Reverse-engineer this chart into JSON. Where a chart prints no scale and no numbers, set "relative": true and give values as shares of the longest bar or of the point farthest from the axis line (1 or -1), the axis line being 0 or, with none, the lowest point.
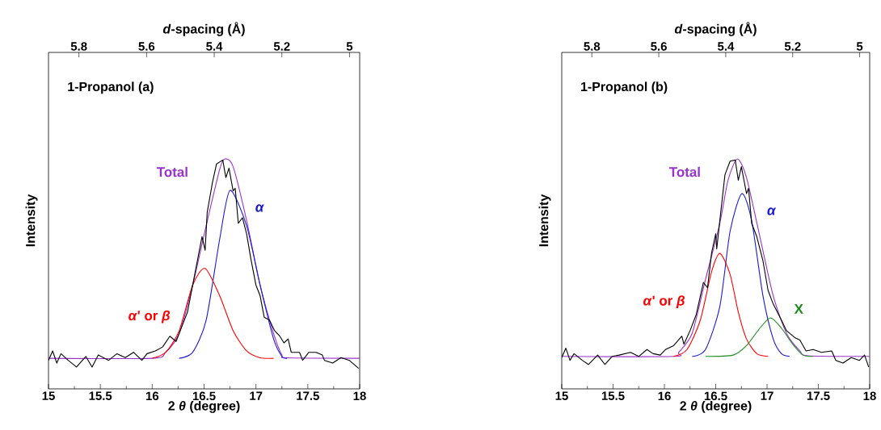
{
  "chart_data": [
    {
      "type": "line",
      "title": "1-Propanol (a)",
      "xlabel": "2 *θ* (degree)",
      "ylabel": "Intensity",
      "x2label": "*d*-spacing (Å)",
      "xlim": [
        15,
        18
      ],
      "xticks": [
        15,
        15.5,
        16,
        16.5,
        17,
        17.5,
        18
      ],
      "x2lim": [
        5.89,
        4.97
      ],
      "x2ticks": [
        5.8,
        5.6,
        5.4,
        5.2,
        5
      ],
      "relative": true,
      "tick_labels": "x",
      "series": [
        {
          "color": "#000000",
          "x": [
            15.0,
            15.04,
            15.08,
            15.12,
            15.19,
            15.27,
            15.36,
            15.42,
            15.48,
            15.58,
            15.66,
            15.74,
            15.82,
            15.9,
            15.95,
            16.03,
            16.1,
            16.17,
            16.23,
            16.29,
            16.34,
            16.39,
            16.44,
            16.48,
            16.51,
            16.53,
            16.58,
            16.62,
            16.68,
            16.71,
            16.74,
            16.78,
            16.8,
            16.83,
            16.87,
            16.91,
            16.95,
            17.0,
            17.04,
            17.08,
            17.13,
            17.18,
            17.23,
            17.27,
            17.31,
            17.34,
            17.42,
            17.45,
            17.51,
            17.58,
            17.64,
            17.66,
            17.74,
            17.82,
            17.9,
            17.99
          ],
          "values": [
            0.124,
            0.165,
            0.112,
            0.153,
            0.124,
            0.095,
            0.141,
            0.095,
            0.147,
            0.124,
            0.153,
            0.136,
            0.159,
            0.124,
            0.153,
            0.165,
            0.182,
            0.229,
            0.206,
            0.276,
            0.334,
            0.451,
            0.568,
            0.662,
            0.603,
            0.767,
            0.896,
            0.978,
            0.995,
            0.919,
            0.96,
            0.861,
            0.872,
            0.72,
            0.744,
            0.674,
            0.568,
            0.451,
            0.405,
            0.311,
            0.299,
            0.253,
            0.229,
            0.2,
            0.217,
            0.159,
            0.159,
            0.124,
            0.159,
            0.159,
            0.147,
            0.124,
            0.112,
            0.136,
            0.124,
            0.089
          ]
        },
        {
          "name": "Total",
          "color": "#9933cc",
          "x": [
            15.0,
            16.0,
            16.13,
            16.26,
            16.39,
            16.52,
            16.65,
            16.7,
            16.78,
            16.91,
            17.04,
            17.17,
            17.25,
            17.3,
            18.0
          ],
          "values": [
            0.133,
            0.133,
            0.159,
            0.241,
            0.451,
            0.709,
            0.954,
            1.0,
            0.966,
            0.732,
            0.451,
            0.241,
            0.147,
            0.135,
            0.133
          ]
        },
        {
          "name": "*α*",
          "color": "#1a1ad6",
          "x": [
            16.26,
            16.39,
            16.52,
            16.65,
            16.75,
            16.91,
            17.04,
            17.17,
            17.25,
            17.3
          ],
          "values": [
            0.133,
            0.159,
            0.299,
            0.65,
            0.863,
            0.709,
            0.451,
            0.217,
            0.141,
            0.133
          ]
        },
        {
          "name": "*α*' or *β*",
          "color": "#ff0000",
          "x": [
            16.0,
            16.13,
            16.26,
            16.39,
            16.51,
            16.65,
            16.78,
            16.91,
            17.04,
            17.17
          ],
          "values": [
            0.133,
            0.159,
            0.253,
            0.451,
            0.524,
            0.405,
            0.253,
            0.165,
            0.135,
            0.133
          ]
        }
      ]
    },
    {
      "type": "line",
      "title": "1-Propanol (b)",
      "xlabel": "2 *θ* (degree)",
      "ylabel": "Intensity",
      "x2label": "*d*-spacing (Å)",
      "xlim": [
        15,
        18
      ],
      "xticks": [
        15,
        15.5,
        16,
        16.5,
        17,
        17.5,
        18
      ],
      "x2lim": [
        5.89,
        4.97
      ],
      "x2ticks": [
        5.8,
        5.6,
        5.4,
        5.2,
        5
      ],
      "relative": true,
      "tick_labels": "x",
      "series": [
        {
          "color": "#000000",
          "x": [
            15.0,
            15.04,
            15.08,
            15.12,
            15.2,
            15.26,
            15.35,
            15.42,
            15.49,
            15.56,
            15.67,
            15.75,
            15.83,
            15.89,
            15.96,
            16.01,
            16.09,
            16.17,
            16.19,
            16.25,
            16.31,
            16.38,
            16.42,
            16.46,
            16.5,
            16.51,
            16.54,
            16.59,
            16.64,
            16.69,
            16.72,
            16.75,
            16.8,
            16.82,
            16.85,
            16.9,
            16.96,
            17.01,
            17.06,
            17.14,
            17.19,
            17.27,
            17.32,
            17.38,
            17.45,
            17.53,
            17.63,
            17.67,
            17.74,
            17.82,
            17.9,
            17.95,
            17.99
          ],
          "values": [
            0.136,
            0.177,
            0.124,
            0.153,
            0.124,
            0.106,
            0.147,
            0.106,
            0.141,
            0.147,
            0.159,
            0.141,
            0.171,
            0.153,
            0.147,
            0.171,
            0.188,
            0.229,
            0.194,
            0.253,
            0.323,
            0.463,
            0.44,
            0.592,
            0.674,
            0.609,
            0.732,
            0.931,
            0.99,
            0.995,
            0.907,
            0.966,
            0.849,
            0.872,
            0.72,
            0.662,
            0.557,
            0.428,
            0.369,
            0.299,
            0.253,
            0.223,
            0.212,
            0.165,
            0.171,
            0.159,
            0.165,
            0.124,
            0.112,
            0.136,
            0.124,
            0.147,
            0.095
          ]
        },
        {
          "name": "Total",
          "color": "#9933cc",
          "x": [
            15.0,
            16.09,
            16.14,
            16.27,
            16.4,
            16.54,
            16.62,
            16.71,
            16.8,
            16.93,
            17.06,
            17.19,
            17.32,
            17.4,
            18.0
          ],
          "values": [
            0.141,
            0.141,
            0.159,
            0.241,
            0.475,
            0.72,
            0.907,
            1.0,
            0.919,
            0.662,
            0.405,
            0.241,
            0.165,
            0.144,
            0.141
          ]
        },
        {
          "name": "*α*",
          "color": "#1a1ad6",
          "x": [
            16.27,
            16.4,
            16.54,
            16.64,
            16.754,
            16.85,
            16.96,
            17.06,
            17.14,
            17.22
          ],
          "values": [
            0.141,
            0.171,
            0.358,
            0.685,
            0.849,
            0.732,
            0.405,
            0.217,
            0.153,
            0.141
          ]
        },
        {
          "name": "*α*' or *β*",
          "color": "#ff0000",
          "x": [
            16.09,
            16.22,
            16.35,
            16.46,
            16.541,
            16.64,
            16.72,
            16.8,
            16.9,
            17.01
          ],
          "values": [
            0.141,
            0.171,
            0.299,
            0.51,
            0.589,
            0.498,
            0.334,
            0.217,
            0.153,
            0.141
          ]
        },
        {
          "name": "X",
          "color": "#1a8a1a",
          "x": [
            16.4,
            16.67,
            16.8,
            16.93,
            17.035,
            17.14,
            17.25,
            17.35,
            17.45
          ],
          "values": [
            0.141,
            0.147,
            0.188,
            0.264,
            0.309,
            0.264,
            0.194,
            0.147,
            0.141
          ]
        }
      ]
    }
  ]
}
